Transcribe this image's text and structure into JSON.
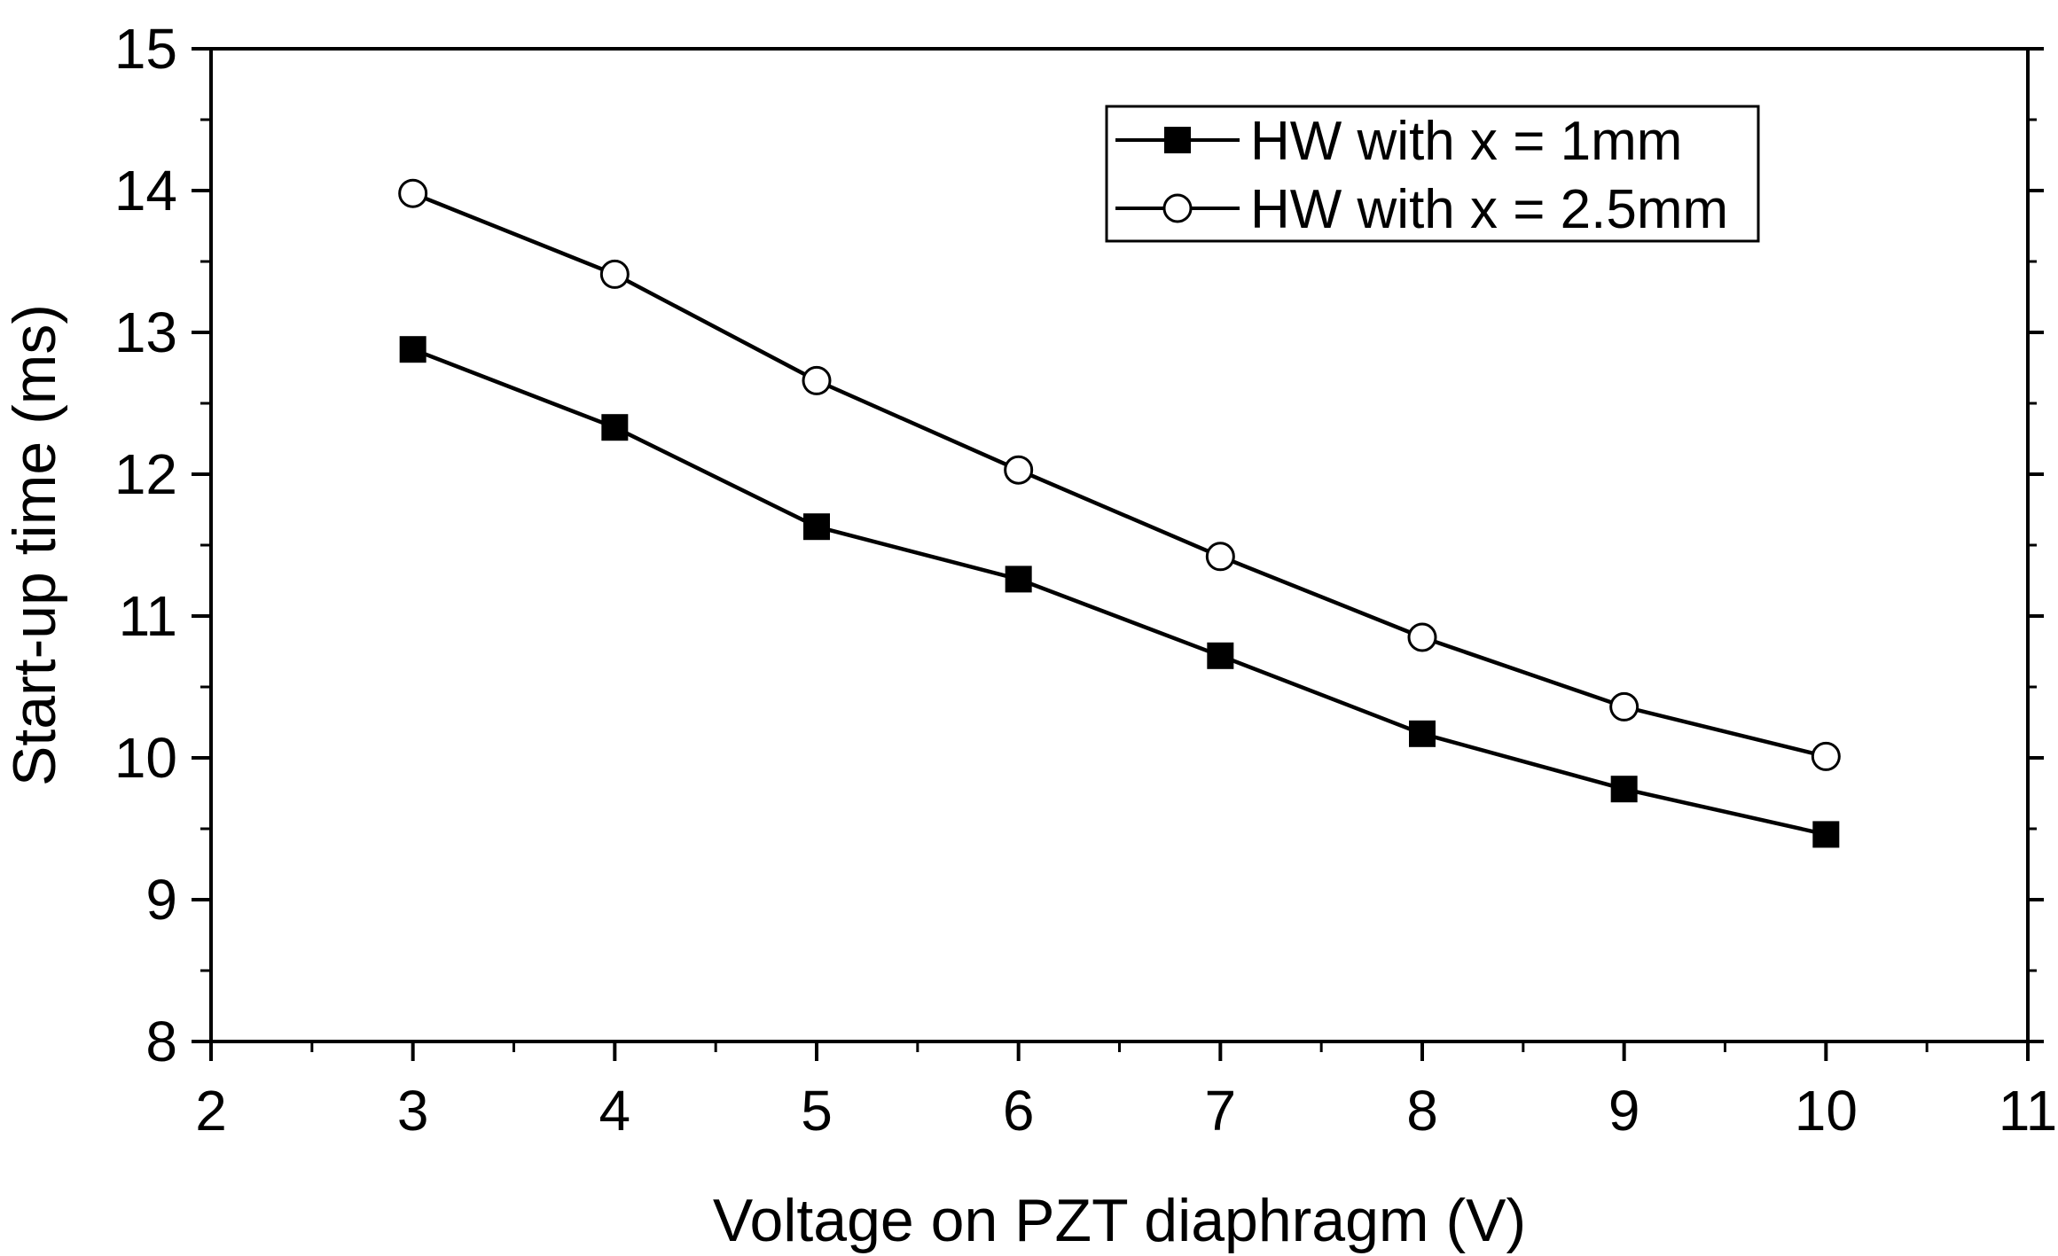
{
  "chart_data": {
    "type": "line",
    "title": "",
    "xlabel": "Voltage on PZT diaphragm (V)",
    "ylabel": "Start-up time (ms)",
    "xlim": [
      2,
      11
    ],
    "ylim": [
      8,
      15
    ],
    "x_ticks": [
      "2",
      "3",
      "4",
      "5",
      "6",
      "7",
      "8",
      "9",
      "10",
      "11"
    ],
    "y_ticks": [
      "8",
      "9",
      "10",
      "11",
      "12",
      "13",
      "14",
      "15"
    ],
    "grid": false,
    "legend_position": "top-right",
    "series": [
      {
        "name": "HW with x = 1mm",
        "marker": "filled-square",
        "x": [
          3,
          4,
          5,
          6,
          7,
          8,
          9,
          10
        ],
        "y": [
          12.88,
          12.33,
          11.63,
          11.26,
          10.72,
          10.17,
          9.78,
          9.46
        ]
      },
      {
        "name": "HW with x = 2.5mm",
        "marker": "open-circle",
        "x": [
          3,
          4,
          5,
          6,
          7,
          8,
          9,
          10
        ],
        "y": [
          13.98,
          13.41,
          12.66,
          12.03,
          11.42,
          10.85,
          10.36,
          10.01
        ]
      }
    ]
  }
}
